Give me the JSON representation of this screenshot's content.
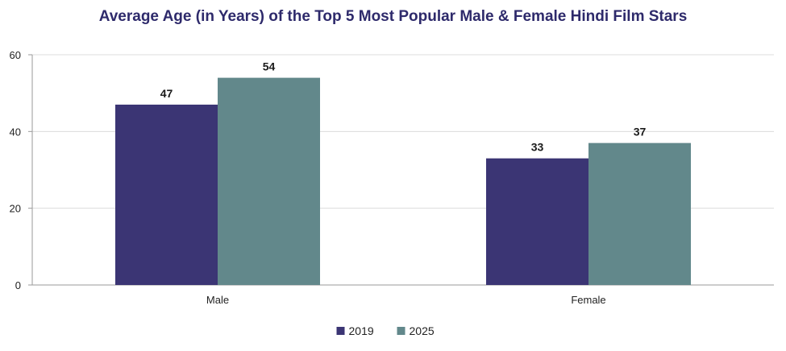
{
  "chart_data": {
    "type": "bar",
    "title": "Average Age (in Years) of the Top 5 Most Popular Male & Female Hindi Film Stars",
    "xlabel": "",
    "ylabel": "",
    "categories": [
      "Male",
      "Female"
    ],
    "series": [
      {
        "name": "2019",
        "values": [
          47,
          33
        ],
        "color": "#3b3574"
      },
      {
        "name": "2025",
        "values": [
          54,
          37
        ],
        "color": "#62888b"
      }
    ],
    "ylim": [
      0,
      60
    ],
    "yticks": [
      0,
      20,
      40,
      60
    ],
    "grid": true,
    "legend": "bottom-center"
  }
}
